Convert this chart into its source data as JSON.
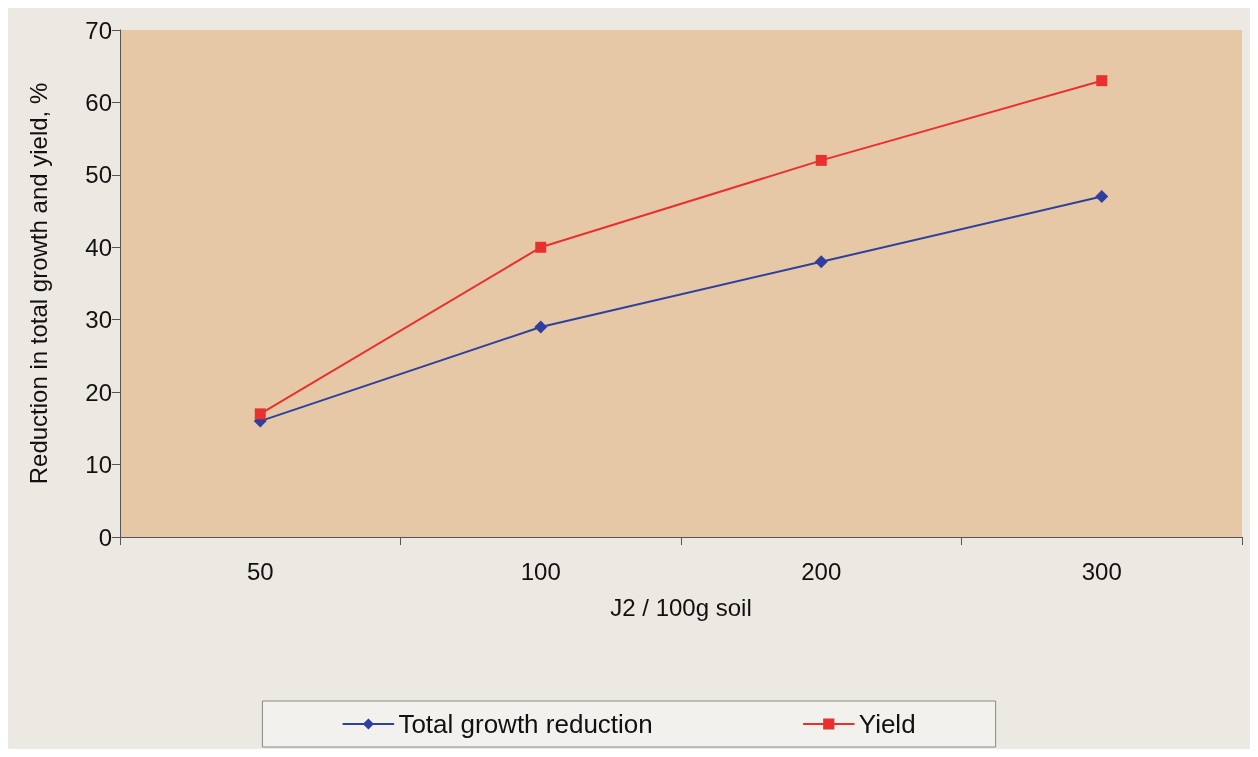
{
  "chart_data": {
    "type": "line",
    "xlabel": "J2 / 100g soil",
    "ylabel": "Reduction in total growth and yield, %",
    "categories": [
      "50",
      "100",
      "200",
      "300"
    ],
    "series": [
      {
        "name": "Total growth reduction",
        "color": "#2e3f9e",
        "marker": "diamond",
        "values": [
          16,
          29,
          38,
          47
        ]
      },
      {
        "name": "Yield",
        "color": "#e8312f",
        "marker": "square",
        "values": [
          17,
          40,
          52,
          63
        ]
      }
    ],
    "ylim": [
      0,
      70
    ],
    "yticks": [
      0,
      10,
      20,
      30,
      40,
      50,
      60,
      70
    ],
    "grid": false,
    "legend": "bottom",
    "line_style": "solid"
  }
}
